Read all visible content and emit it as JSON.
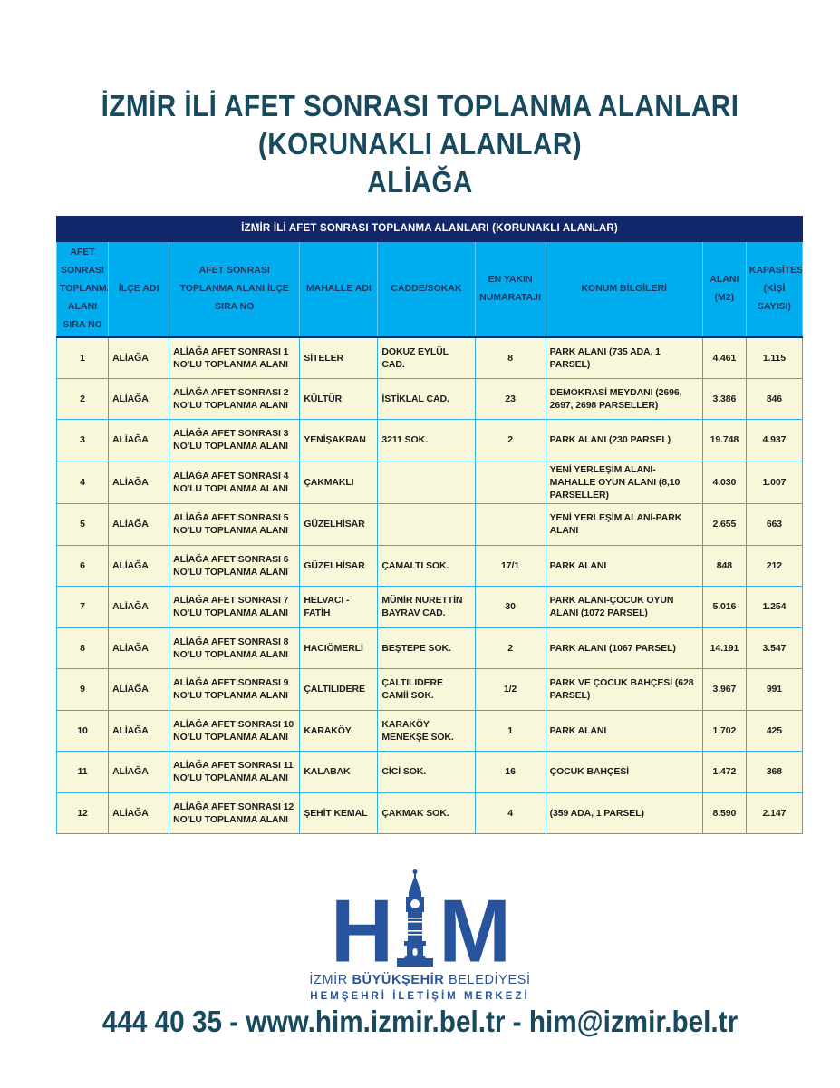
{
  "page": {
    "title_lines": [
      "İZMİR İLİ AFET SONRASI TOPLANMA ALANLARI",
      "(KORUNAKLI ALANLAR)",
      "ALİAĞA"
    ],
    "contact_line": "444 40 35  - www.him.izmir.bel.tr - him@izmir.bel.tr"
  },
  "table": {
    "caption": "İZMİR İLİ AFET SONRASI TOPLANMA ALANLARI (KORUNAKLI ALANLAR)",
    "columns": [
      "AFET SONRASI TOPLANMA ALANI SIRA NO",
      "İLÇE ADI",
      "AFET SONRASI TOPLANMA ALANI İLÇE SIRA NO",
      "MAHALLE ADI",
      "CADDE/SOKAK",
      "EN YAKIN NUMARATAJI",
      "KONUM BİLGİLERİ",
      "ALANI (M2)",
      "KAPASİTESİ (KİŞİ SAYISI)"
    ],
    "rows": [
      [
        "1",
        "ALİAĞA",
        "ALİAĞA AFET SONRASI 1 NO'LU TOPLANMA ALANI",
        "SİTELER",
        "DOKUZ EYLÜL CAD.",
        "8",
        "PARK ALANI (735 ADA, 1 PARSEL)",
        "4.461",
        "1.115"
      ],
      [
        "2",
        "ALİAĞA",
        "ALİAĞA AFET SONRASI 2 NO'LU TOPLANMA ALANI",
        "KÜLTÜR",
        "İSTİKLAL CAD.",
        "23",
        "DEMOKRASİ MEYDANI (2696, 2697, 2698 PARSELLER)",
        "3.386",
        "846"
      ],
      [
        "3",
        "ALİAĞA",
        "ALİAĞA AFET SONRASI 3 NO'LU TOPLANMA ALANI",
        "YENİŞAKRAN",
        "3211 SOK.",
        "2",
        "PARK ALANI (230 PARSEL)",
        "19.748",
        "4.937"
      ],
      [
        "4",
        "ALİAĞA",
        "ALİAĞA AFET SONRASI 4 NO'LU TOPLANMA ALANI",
        "ÇAKMAKLI",
        "",
        "",
        "YENİ YERLEŞİM ALANI-MAHALLE OYUN ALANI (8,10 PARSELLER)",
        "4.030",
        "1.007"
      ],
      [
        "5",
        "ALİAĞA",
        "ALİAĞA AFET SONRASI 5 NO'LU TOPLANMA ALANI",
        "GÜZELHİSAR",
        "",
        "",
        "YENİ YERLEŞİM ALANI-PARK ALANI",
        "2.655",
        "663"
      ],
      [
        "6",
        "ALİAĞA",
        "ALİAĞA AFET SONRASI 6 NO'LU TOPLANMA ALANI",
        "GÜZELHİSAR",
        "ÇAMALTI SOK.",
        "17/1",
        "PARK ALANI",
        "848",
        "212"
      ],
      [
        "7",
        "ALİAĞA",
        "ALİAĞA AFET SONRASI 7 NO'LU TOPLANMA ALANI",
        "HELVACI - FATİH",
        "MÜNİR NURETTİN BAYRAV CAD.",
        "30",
        "PARK ALANI-ÇOCUK OYUN ALANI (1072 PARSEL)",
        "5.016",
        "1.254"
      ],
      [
        "8",
        "ALİAĞA",
        "ALİAĞA AFET SONRASI 8 NO'LU TOPLANMA ALANI",
        "HACIÖMERLİ",
        "BEŞTEPE SOK.",
        "2",
        "PARK ALANI (1067 PARSEL)",
        "14.191",
        "3.547"
      ],
      [
        "9",
        "ALİAĞA",
        "ALİAĞA AFET SONRASI 9 NO'LU TOPLANMA ALANI",
        "ÇALTILIDERE",
        "ÇALTILIDERE CAMİİ SOK.",
        "1/2",
        "PARK VE ÇOCUK BAHÇESİ (628 PARSEL)",
        "3.967",
        "991"
      ],
      [
        "10",
        "ALİAĞA",
        "ALİAĞA AFET SONRASI 10 NO'LU TOPLANMA ALANI",
        "KARAKÖY",
        "KARAKÖY MENEKŞE SOK.",
        "1",
        "PARK ALANI",
        "1.702",
        "425"
      ],
      [
        "11",
        "ALİAĞA",
        "ALİAĞA AFET SONRASI 11 NO'LU TOPLANMA ALANI",
        "KALABAK",
        "CİCİ SOK.",
        "16",
        "ÇOCUK BAHÇESİ",
        "1.472",
        "368"
      ],
      [
        "12",
        "ALİAĞA",
        "ALİAĞA AFET SONRASI 12 NO'LU TOPLANMA ALANI",
        "ŞEHİT KEMAL",
        "ÇAKMAK SOK.",
        "4",
        "(359 ADA, 1 PARSEL)",
        "8.590",
        "2.147"
      ]
    ]
  },
  "logo": {
    "letter_h": "H",
    "letter_m": "M",
    "line1_prefix": "İZMİR ",
    "line1_bold": "BÜYÜKŞEHİR",
    "line1_suffix": " BELEDİYESİ",
    "line2": "HEMŞEHRİ İLETİŞİM MERKEZİ"
  },
  "colors": {
    "title_text": "#17495F",
    "caption_band": "#12266A",
    "header_cell_bg": "#00AEEF",
    "header_cell_text": "#1F3864",
    "row_bg": "#F8F7D9",
    "border_cyan": "#2FAFDE",
    "logo_blue": "#27549D"
  }
}
